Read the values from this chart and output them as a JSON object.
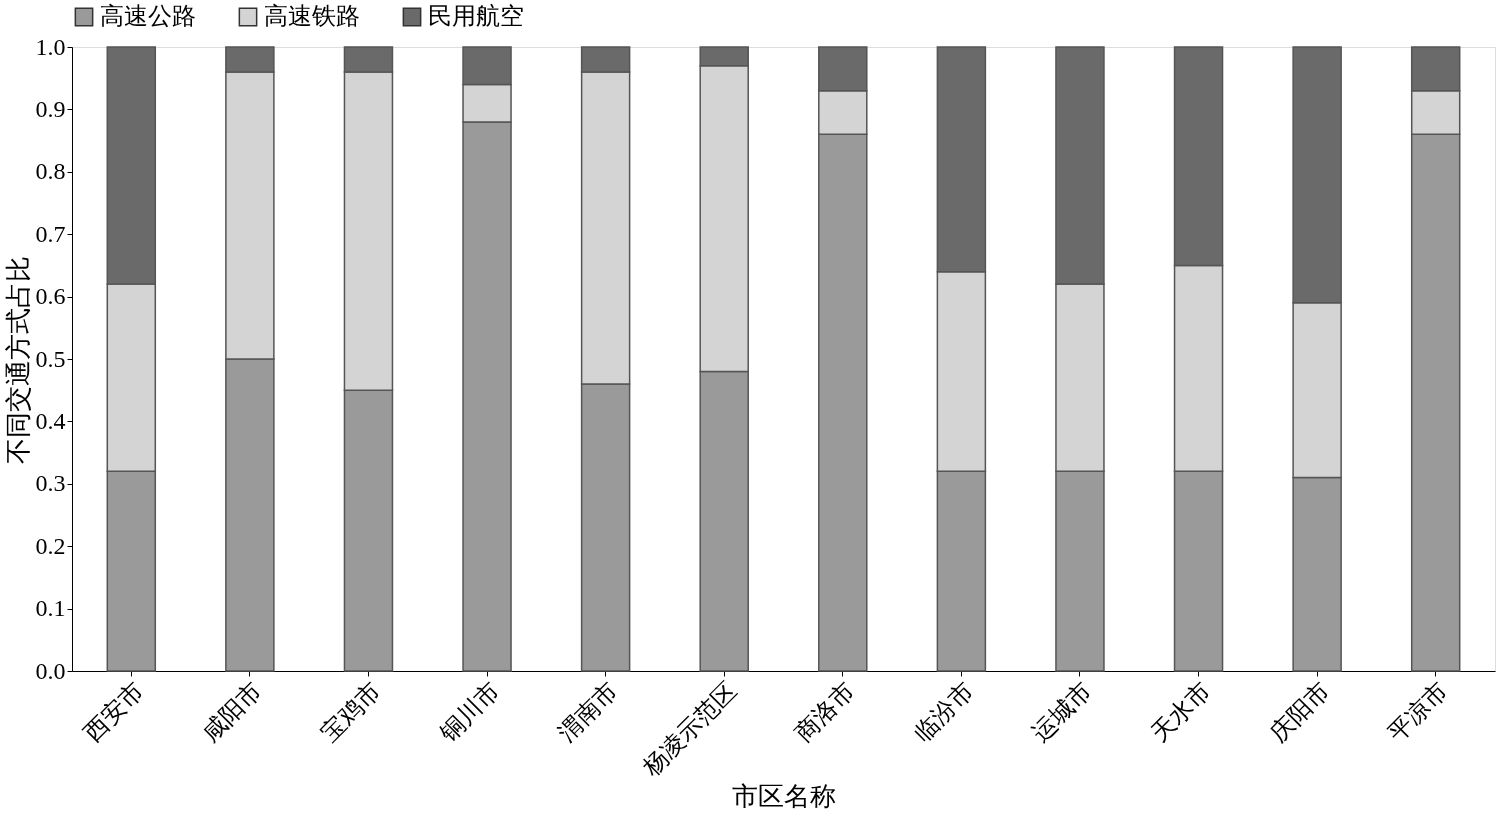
{
  "chart_data": {
    "type": "bar",
    "stacked": true,
    "xlabel": "市区名称",
    "ylabel": "不同交通方式占比",
    "categories": [
      "西安市",
      "咸阳市",
      "宝鸡市",
      "铜川市",
      "渭南市",
      "杨凌示范区",
      "商洛市",
      "临汾市",
      "运城市",
      "天水市",
      "庆阳市",
      "平凉市"
    ],
    "series": [
      {
        "name": "高速公路",
        "color": "#9a9a9a",
        "values": [
          0.32,
          0.5,
          0.45,
          0.88,
          0.46,
          0.48,
          0.86,
          0.32,
          0.32,
          0.32,
          0.31,
          0.86
        ]
      },
      {
        "name": "高速铁路",
        "color": "#d4d4d4",
        "values": [
          0.3,
          0.46,
          0.51,
          0.06,
          0.5,
          0.49,
          0.07,
          0.32,
          0.3,
          0.33,
          0.28,
          0.07
        ]
      },
      {
        "name": "民用航空",
        "color": "#6a6a6a",
        "values": [
          0.38,
          0.04,
          0.04,
          0.06,
          0.04,
          0.03,
          0.07,
          0.36,
          0.38,
          0.35,
          0.41,
          0.07
        ]
      }
    ],
    "ylim": [
      0,
      1
    ],
    "yticks": [
      {
        "value": 0,
        "label": "0.0"
      },
      0.1,
      0.2,
      0.3,
      0.4,
      0.5,
      0.6,
      0.7,
      0.8,
      0.9,
      {
        "value": 1,
        "label": "1.0"
      }
    ],
    "grid": false,
    "legend": "top"
  }
}
